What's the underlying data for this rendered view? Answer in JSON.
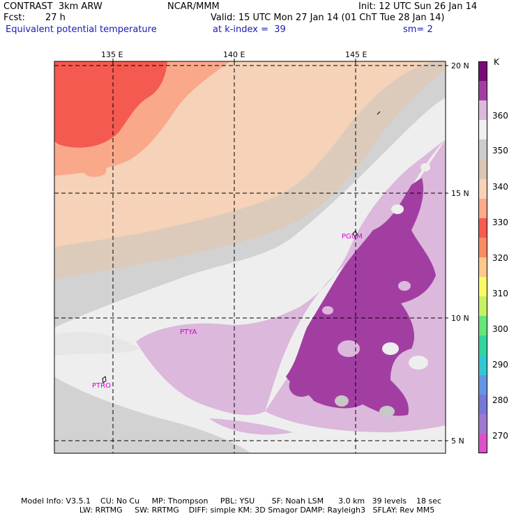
{
  "header": {
    "model": "CONTRAST  3km ARW",
    "center": "NCAR/MMM",
    "init": "Init: 12 UTC Sun 26 Jan 14",
    "fcst_label": "Fcst:",
    "fcst_value": "27 h",
    "valid": "Valid: 15 UTC Mon 27 Jan 14 (01 ChT Tue 28 Jan 14)",
    "field": "Equivalent potential temperature",
    "level": "at k-index =  39",
    "smooth": "sm= 2"
  },
  "axes": {
    "lon_labels": [
      "135 E",
      "140 E",
      "145 E"
    ],
    "lat_labels": [
      "20 N",
      "15 N",
      "10 N",
      "5 N"
    ]
  },
  "stations": [
    "PGUM",
    "PTYA",
    "PTRO"
  ],
  "colorbar": {
    "unit": "K",
    "labels": [
      "360",
      "350",
      "340",
      "330",
      "320",
      "310",
      "300",
      "290",
      "280",
      "270"
    ],
    "colors": [
      "#7a0a7a",
      "#a23ea2",
      "#dcb8dc",
      "#f0f0f0",
      "#cccccc",
      "#dac6b4",
      "#f6d2b8",
      "#fbaa8a",
      "#f85a50",
      "#fa8c64",
      "#fcc88c",
      "#fafa64",
      "#c8f064",
      "#64e678",
      "#32d7a0",
      "#32c8d2",
      "#6496e6",
      "#7878d7",
      "#a078d2",
      "#dc50c8"
    ]
  },
  "footer": {
    "line1": "Model Info: V3.5.1    CU: No Cu     MP: Thompson     PBL: YSU       SF: Noah LSM      3.0 km   39 levels    18 sec",
    "line2": "                        LW: RRTMG     SW: RRTMG    DIFF: simple KM: 3D Smagor DAMP: Rayleigh3   SFLAY: Rev MM5"
  }
}
